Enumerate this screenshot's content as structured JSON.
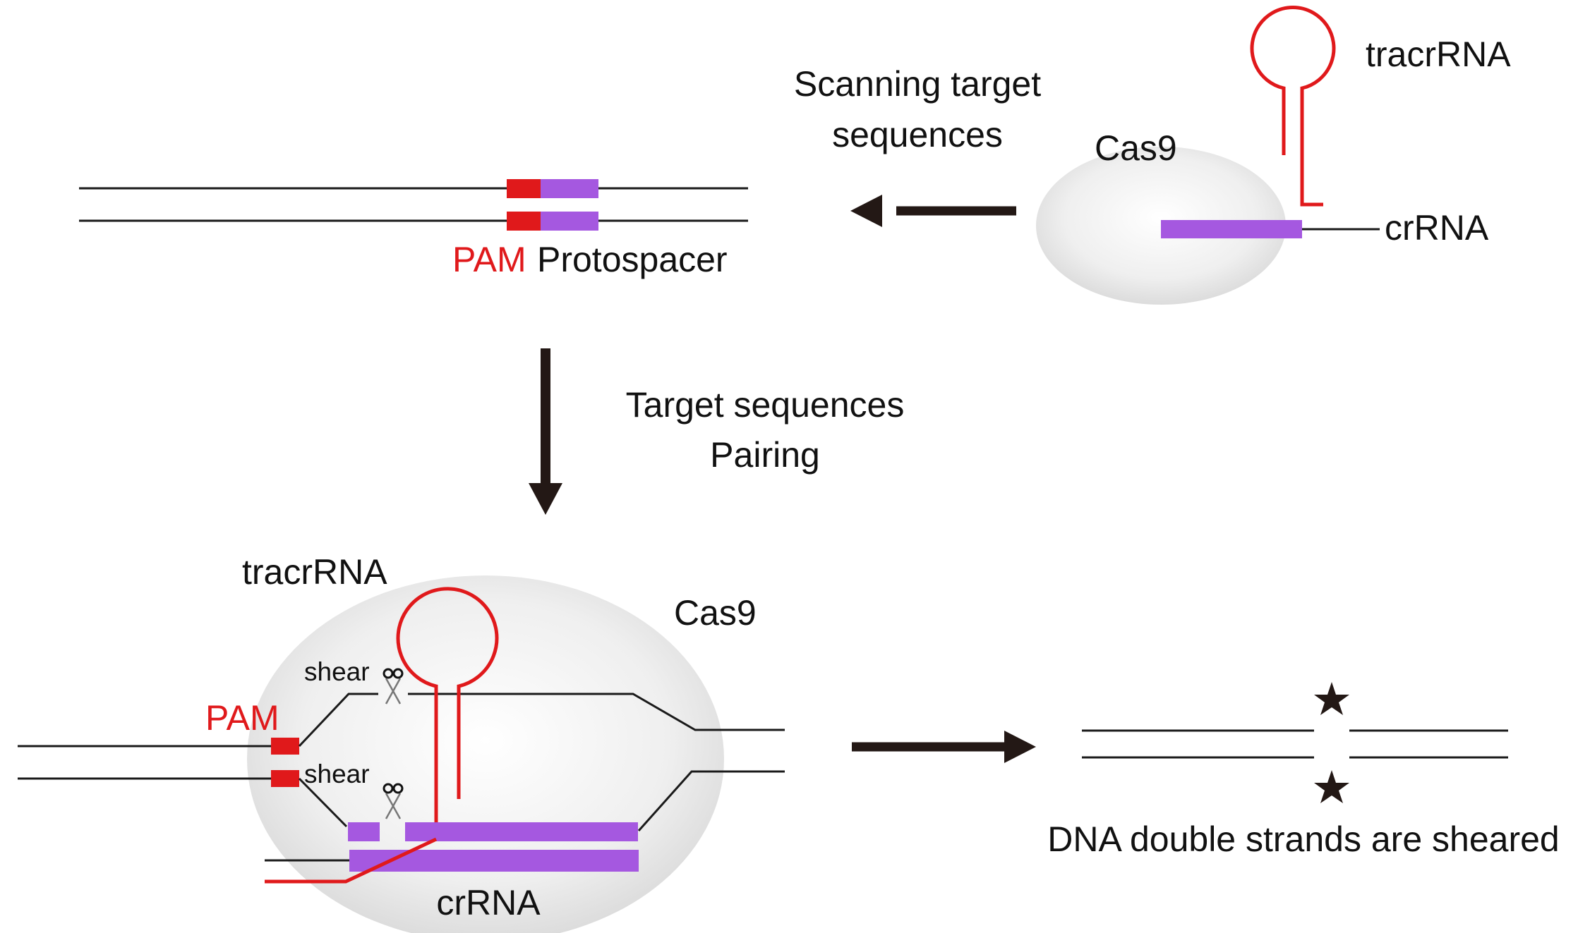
{
  "colors": {
    "dna": "#1a1a1a",
    "pam": "#e0191b",
    "protospacer": "#a558e0",
    "tracr": "#e0191b",
    "arrow": "#231815"
  },
  "icons": [
    "scissors-icon",
    "star-icon"
  ],
  "top_right": {
    "tracrRNA": "tracrRNA",
    "cas9": "Cas9",
    "crRNA": "crRNA"
  },
  "scan_label": {
    "line1": "Scanning target",
    "line2": "sequences"
  },
  "top_left": {
    "pam": "PAM",
    "protospacer": "Protospacer"
  },
  "pairing_label": {
    "line1": "Target sequences",
    "line2": "Pairing"
  },
  "bottom_left": {
    "tracrRNA": "tracrRNA",
    "cas9": "Cas9",
    "pam": "PAM",
    "shear_top": "shear",
    "shear_bottom": "shear",
    "crRNA": "crRNA"
  },
  "result_label": "DNA double strands are sheared"
}
